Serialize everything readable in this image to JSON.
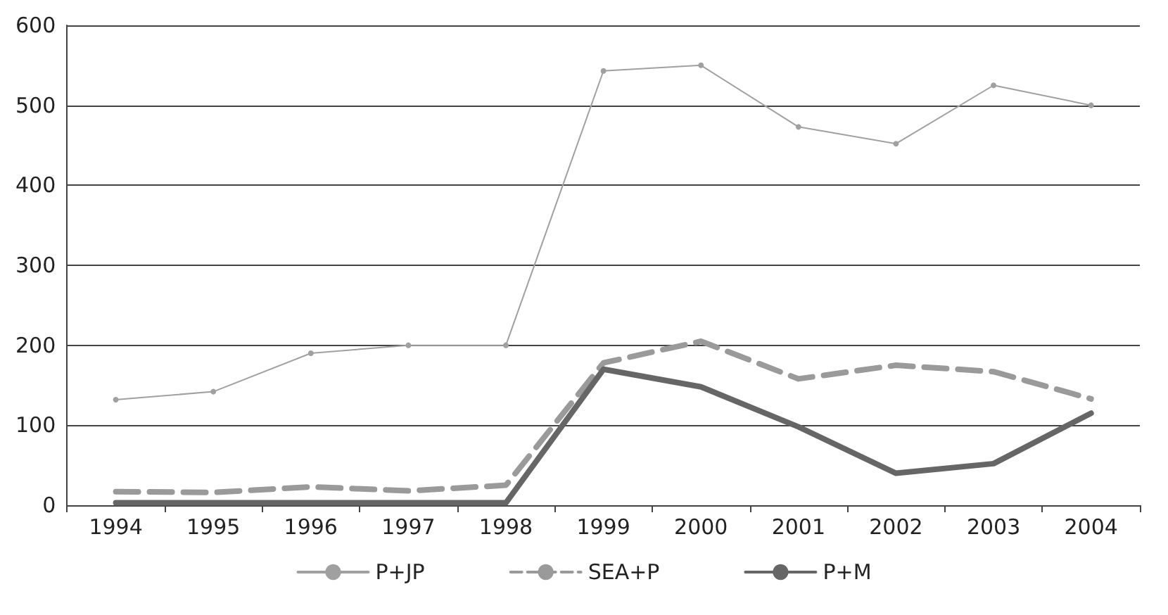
{
  "chart_data": {
    "type": "line",
    "categories": [
      "1994",
      "1995",
      "1996",
      "1997",
      "1998",
      "1999",
      "2000",
      "2001",
      "2002",
      "2003",
      "2004"
    ],
    "series": [
      {
        "name": "P+JP",
        "color": "#a0a0a0",
        "marker": "circle",
        "line_style": "solid",
        "values": [
          132,
          142,
          190,
          200,
          200,
          543,
          550,
          473,
          452,
          525,
          500
        ]
      },
      {
        "name": "SEA+P",
        "color": "#9a9a9a",
        "marker": "none",
        "line_style": "dashed",
        "values": [
          17,
          16,
          23,
          18,
          25,
          178,
          205,
          158,
          175,
          167,
          133
        ]
      },
      {
        "name": "P+M",
        "color": "#666666",
        "marker": "none",
        "line_style": "solid",
        "values": [
          3,
          3,
          3,
          3,
          3,
          170,
          148,
          98,
          40,
          52,
          115
        ]
      }
    ],
    "ylim": [
      0,
      600
    ],
    "yticks": [
      0,
      100,
      200,
      300,
      400,
      500,
      600
    ],
    "grid": "y",
    "legend": "bottom"
  }
}
